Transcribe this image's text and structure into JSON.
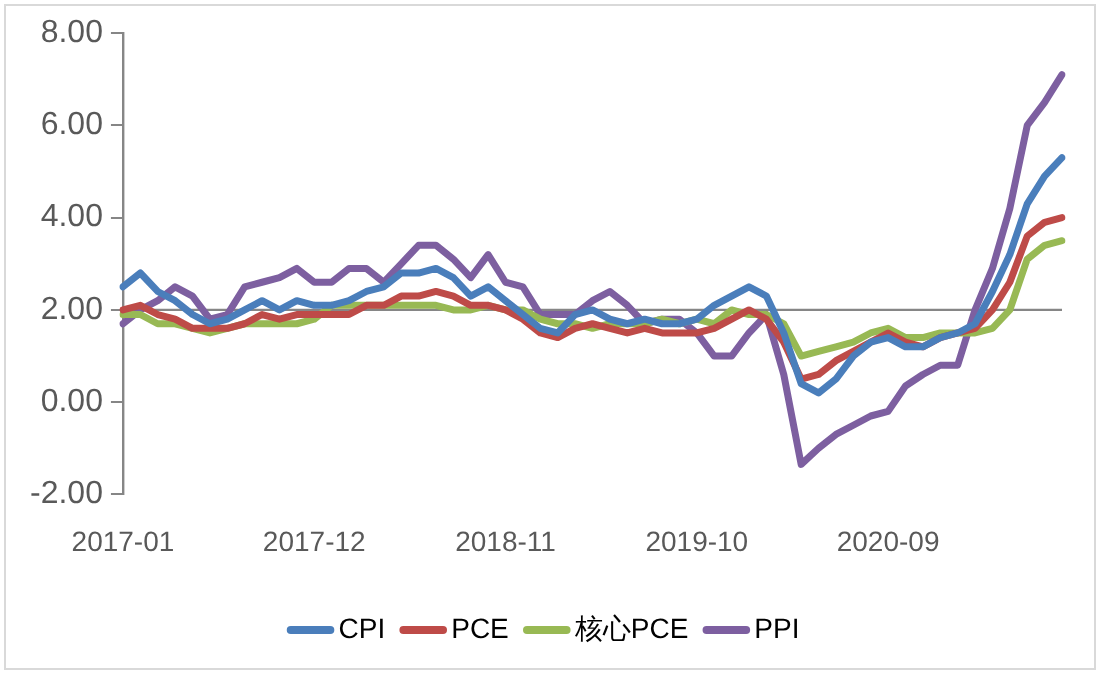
{
  "chart_data": {
    "type": "line",
    "categories": [
      "2017-01",
      null,
      null,
      null,
      null,
      null,
      null,
      null,
      null,
      null,
      null,
      "2017-12",
      null,
      null,
      null,
      null,
      null,
      null,
      null,
      null,
      null,
      null,
      "2018-11",
      null,
      null,
      null,
      null,
      null,
      null,
      null,
      null,
      null,
      null,
      "2019-10",
      null,
      null,
      null,
      null,
      null,
      null,
      null,
      null,
      null,
      null,
      "2020-09",
      null,
      null,
      null,
      null,
      null,
      null,
      null,
      null,
      null,
      null
    ],
    "series": [
      {
        "name": "CPI",
        "color": "#4a7ebb",
        "values": [
          2.5,
          2.8,
          2.4,
          2.2,
          1.9,
          1.7,
          1.8,
          2.0,
          2.2,
          2.0,
          2.2,
          2.1,
          2.1,
          2.2,
          2.4,
          2.5,
          2.8,
          2.8,
          2.9,
          2.7,
          2.3,
          2.5,
          2.2,
          1.9,
          1.6,
          1.5,
          1.9,
          2.0,
          1.8,
          1.7,
          1.8,
          1.7,
          1.7,
          1.8,
          2.1,
          2.3,
          2.5,
          2.3,
          1.5,
          0.4,
          0.2,
          0.5,
          1.0,
          1.3,
          1.4,
          1.2,
          1.2,
          1.4,
          1.5,
          1.7,
          2.4,
          3.2,
          4.3,
          4.9,
          5.3
        ]
      },
      {
        "name": "PCE",
        "color": "#be4b48",
        "values": [
          2.0,
          2.1,
          1.9,
          1.8,
          1.6,
          1.6,
          1.6,
          1.7,
          1.9,
          1.8,
          1.9,
          1.9,
          1.9,
          1.9,
          2.1,
          2.1,
          2.3,
          2.3,
          2.4,
          2.3,
          2.1,
          2.1,
          2.0,
          1.8,
          1.5,
          1.4,
          1.6,
          1.7,
          1.6,
          1.5,
          1.6,
          1.5,
          1.5,
          1.5,
          1.6,
          1.8,
          2.0,
          1.8,
          1.3,
          0.5,
          0.6,
          0.9,
          1.1,
          1.3,
          1.5,
          1.3,
          1.2,
          1.4,
          1.5,
          1.6,
          2.0,
          2.6,
          3.6,
          3.9,
          4.0
        ]
      },
      {
        "name": "核心PCE",
        "color": "#98b954",
        "values": [
          1.9,
          1.9,
          1.7,
          1.7,
          1.6,
          1.5,
          1.6,
          1.7,
          1.7,
          1.7,
          1.7,
          1.8,
          2.1,
          2.1,
          2.1,
          2.1,
          2.1,
          2.1,
          2.1,
          2.0,
          2.0,
          2.1,
          2.0,
          2.0,
          1.8,
          1.7,
          1.7,
          1.6,
          1.7,
          1.7,
          1.7,
          1.8,
          1.7,
          1.8,
          1.7,
          2.0,
          1.9,
          1.9,
          1.7,
          1.0,
          1.1,
          1.2,
          1.3,
          1.5,
          1.6,
          1.4,
          1.4,
          1.5,
          1.5,
          1.5,
          1.6,
          2.0,
          3.1,
          3.4,
          3.5
        ]
      },
      {
        "name": "PPI",
        "color": "#7d5fa0",
        "values": [
          1.7,
          2.0,
          2.2,
          2.5,
          2.3,
          1.8,
          1.9,
          2.5,
          2.6,
          2.7,
          2.9,
          2.6,
          2.6,
          2.9,
          2.9,
          2.6,
          3.0,
          3.4,
          3.4,
          3.1,
          2.7,
          3.2,
          2.6,
          2.5,
          1.9,
          1.9,
          1.9,
          2.2,
          2.4,
          2.1,
          1.7,
          1.8,
          1.8,
          1.5,
          1.0,
          1.0,
          1.5,
          1.9,
          0.6,
          -1.35,
          -1.0,
          -0.7,
          -0.5,
          -0.3,
          -0.2,
          0.35,
          0.6,
          0.8,
          0.8,
          2.0,
          2.9,
          4.2,
          6.0,
          6.5,
          7.1
        ]
      }
    ],
    "ylim": [
      -2,
      8
    ],
    "yticks": [
      {
        "value": -2,
        "label": "-2.00"
      },
      {
        "value": 0,
        "label": "0.00"
      },
      {
        "value": 2,
        "label": "2.00"
      },
      {
        "value": 4,
        "label": "4.00"
      },
      {
        "value": 6,
        "label": "6.00"
      },
      {
        "value": 8,
        "label": "8.00"
      }
    ],
    "ref_lines": [
      {
        "axis": "y",
        "value": 2,
        "color": "#868686"
      }
    ],
    "grid": false,
    "legend": "bottom",
    "marker": "none",
    "line_style": "solid"
  }
}
